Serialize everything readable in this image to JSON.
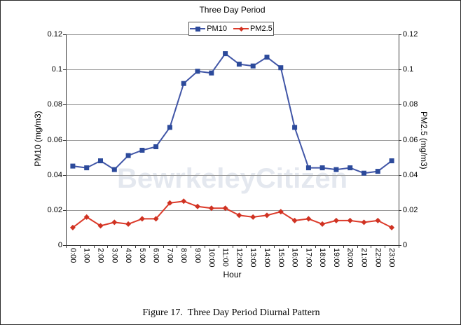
{
  "chart_data": {
    "type": "line",
    "title": "Three Day Period",
    "xlabel": "Hour",
    "ylabel_left": "PM10 (mg/m3)",
    "ylabel_right": "PM2.5 (mg/m3)",
    "ylim": [
      0,
      0.12
    ],
    "y_ticks": [
      0,
      0.02,
      0.04,
      0.06,
      0.08,
      0.1,
      0.12
    ],
    "y_tick_labels": [
      "0",
      "0.02",
      "0.04",
      "0.06",
      "0.08",
      "0.1",
      "0.12"
    ],
    "grid": true,
    "grid_color": "#999999",
    "axis_color": "#3a3a3a",
    "legend_position": "top-center",
    "categories": [
      "0:00",
      "1:00",
      "2:00",
      "3:00",
      "4:00",
      "5:00",
      "6:00",
      "7:00",
      "8:00",
      "9:00",
      "10:00",
      "11:00",
      "12:00",
      "13:00",
      "14:00",
      "15:00",
      "16:00",
      "17:00",
      "18:00",
      "19:00",
      "20:00",
      "21:00",
      "22:00",
      "23:00"
    ],
    "series": [
      {
        "name": "PM10",
        "axis": "left",
        "marker": "square",
        "color": "#4156a7",
        "marker_color": "#2c4a9b",
        "values": [
          0.045,
          0.044,
          0.048,
          0.043,
          0.051,
          0.054,
          0.056,
          0.067,
          0.092,
          0.099,
          0.098,
          0.109,
          0.103,
          0.102,
          0.107,
          0.101,
          0.067,
          0.044,
          0.044,
          0.043,
          0.044,
          0.041,
          0.042,
          0.048
        ]
      },
      {
        "name": "PM2.5",
        "axis": "right",
        "marker": "diamond",
        "color": "#dc3a2a",
        "marker_color": "#cf3222",
        "values": [
          0.01,
          0.016,
          0.011,
          0.013,
          0.012,
          0.015,
          0.015,
          0.024,
          0.025,
          0.022,
          0.021,
          0.021,
          0.017,
          0.016,
          0.017,
          0.019,
          0.014,
          0.015,
          0.012,
          0.014,
          0.014,
          0.013,
          0.014,
          0.01
        ]
      }
    ]
  },
  "watermark": {
    "text": "BewrkeleyCitizen",
    "color": "#e4e8ef"
  },
  "caption": {
    "text": "Figure 17.  Three Day Period Diurnal Pattern"
  }
}
